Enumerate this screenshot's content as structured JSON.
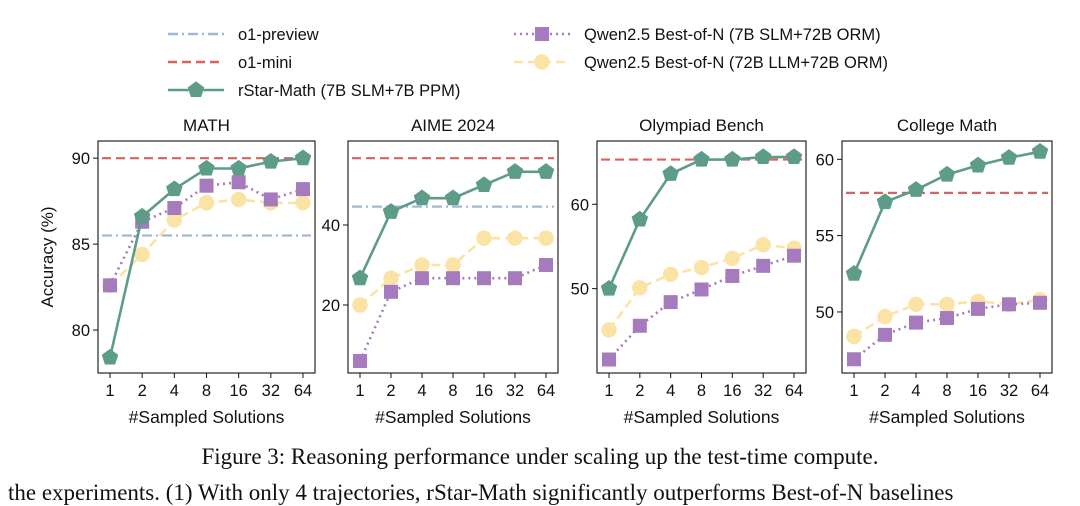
{
  "legend": [
    {
      "name": "o1-preview",
      "color": "#9fb8d4",
      "dash": "dashdot",
      "marker": "none",
      "lineStyle": "dashdot"
    },
    {
      "name": "o1-mini",
      "color": "#d9625c",
      "dash": "dashed",
      "marker": "none",
      "lineStyle": "dashed"
    },
    {
      "name": "rStar-Math (7B SLM+7B PPM)",
      "color": "#5e9c8a",
      "marker": "pentagon",
      "lineStyle": "solid"
    },
    {
      "name": "Qwen2.5 Best-of-N (7B SLM+72B ORM)",
      "color": "#a67bbd",
      "marker": "square",
      "lineStyle": "dotted"
    },
    {
      "name": "Qwen2.5 Best-of-N (72B LLM+72B ORM)",
      "color": "#fbe3a6",
      "marker": "circle",
      "lineStyle": "dashed"
    }
  ],
  "caption": "Figure 3: Reasoning performance under scaling up the test-time compute.",
  "body_line": "the experiments. (1) With only 4 trajectories, rStar-Math significantly outperforms Best-of-N baselines",
  "chart_data": [
    {
      "type": "line",
      "title": "MATH",
      "xlabel": "#Sampled Solutions",
      "ylabel": "Accuracy (%)",
      "x": [
        1,
        2,
        4,
        8,
        16,
        32,
        64
      ],
      "xticks": [
        "1",
        "2",
        "4",
        "8",
        "16",
        "32",
        "64"
      ],
      "ylim": [
        77.5,
        91.0
      ],
      "yticks": [
        80,
        85,
        90
      ],
      "hlines": [
        {
          "name": "o1-preview",
          "value": 85.5
        },
        {
          "name": "o1-mini",
          "value": 90.0
        }
      ],
      "series": [
        {
          "name": "rStar-Math (7B SLM+7B PPM)",
          "values": [
            78.4,
            86.6,
            88.2,
            89.4,
            89.4,
            89.8,
            90.0
          ]
        },
        {
          "name": "Qwen2.5 Best-of-N (7B SLM+72B ORM)",
          "values": [
            82.6,
            86.3,
            87.1,
            88.4,
            88.6,
            87.6,
            88.2
          ]
        },
        {
          "name": "Qwen2.5 Best-of-N (72B LLM+72B ORM)",
          "values": [
            82.6,
            84.4,
            86.4,
            87.4,
            87.6,
            87.4,
            87.4
          ]
        }
      ]
    },
    {
      "type": "line",
      "title": "AIME 2024",
      "xlabel": "#Sampled Solutions",
      "ylabel": "",
      "x": [
        1,
        2,
        4,
        8,
        16,
        32,
        64
      ],
      "xticks": [
        "1",
        "2",
        "4",
        "8",
        "16",
        "32",
        "64"
      ],
      "ylim": [
        3.0,
        61.0
      ],
      "yticks": [
        20,
        40
      ],
      "hlines": [
        {
          "name": "o1-preview",
          "value": 44.6
        },
        {
          "name": "o1-mini",
          "value": 56.7
        }
      ],
      "series": [
        {
          "name": "rStar-Math (7B SLM+7B PPM)",
          "values": [
            26.7,
            43.3,
            46.7,
            46.7,
            50.0,
            53.3,
            53.3
          ]
        },
        {
          "name": "Qwen2.5 Best-of-N (7B SLM+72B ORM)",
          "values": [
            6.0,
            23.3,
            26.7,
            26.7,
            26.7,
            26.7,
            30.0
          ]
        },
        {
          "name": "Qwen2.5 Best-of-N (72B LLM+72B ORM)",
          "values": [
            20.0,
            26.7,
            30.0,
            30.0,
            36.7,
            36.7,
            36.7
          ]
        }
      ]
    },
    {
      "type": "line",
      "title": "Olympiad Bench",
      "xlabel": "#Sampled Solutions",
      "ylabel": "",
      "x": [
        1,
        2,
        4,
        8,
        16,
        32,
        64
      ],
      "xticks": [
        "1",
        "2",
        "4",
        "8",
        "16",
        "32",
        "64"
      ],
      "ylim": [
        40.0,
        67.5
      ],
      "yticks": [
        50,
        60
      ],
      "hlines": [
        {
          "name": "o1-mini",
          "value": 65.3
        }
      ],
      "series": [
        {
          "name": "rStar-Math (7B SLM+7B PPM)",
          "values": [
            50.0,
            58.2,
            63.6,
            65.3,
            65.3,
            65.6,
            65.6
          ]
        },
        {
          "name": "Qwen2.5 Best-of-N (7B SLM+72B ORM)",
          "values": [
            41.6,
            45.6,
            48.4,
            49.9,
            51.5,
            52.7,
            53.9
          ]
        },
        {
          "name": "Qwen2.5 Best-of-N (72B LLM+72B ORM)",
          "values": [
            45.1,
            50.1,
            51.7,
            52.5,
            53.6,
            55.2,
            54.8
          ]
        }
      ]
    },
    {
      "type": "line",
      "title": "College Math",
      "xlabel": "#Sampled Solutions",
      "ylabel": "",
      "x": [
        1,
        2,
        4,
        8,
        16,
        32,
        64
      ],
      "xticks": [
        "1",
        "2",
        "4",
        "8",
        "16",
        "32",
        "64"
      ],
      "ylim": [
        46.0,
        61.2
      ],
      "yticks": [
        50,
        55,
        60
      ],
      "hlines": [
        {
          "name": "o1-mini",
          "value": 57.8
        }
      ],
      "series": [
        {
          "name": "rStar-Math (7B SLM+7B PPM)",
          "values": [
            52.5,
            57.2,
            58.0,
            59.0,
            59.6,
            60.1,
            60.5
          ]
        },
        {
          "name": "Qwen2.5 Best-of-N (7B SLM+72B ORM)",
          "values": [
            46.9,
            48.5,
            49.3,
            49.6,
            50.2,
            50.5,
            50.6
          ]
        },
        {
          "name": "Qwen2.5 Best-of-N (72B LLM+72B ORM)",
          "values": [
            48.4,
            49.7,
            50.5,
            50.5,
            50.7,
            50.5,
            50.8
          ]
        }
      ]
    }
  ]
}
